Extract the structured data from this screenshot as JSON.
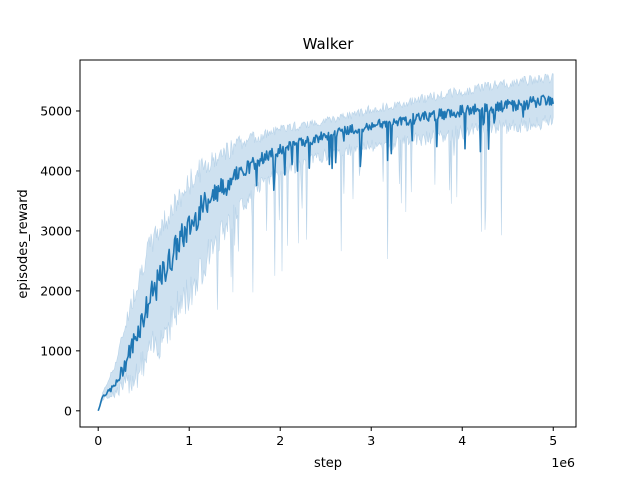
{
  "chart_data": {
    "type": "line",
    "title": "Walker",
    "xlabel": "step",
    "ylabel": "episodes_reward",
    "x_offset_label": "1e6",
    "xlim": [
      -0.2,
      5.25
    ],
    "ylim": [
      -270,
      5850
    ],
    "xticks": [
      0,
      1,
      2,
      3,
      4,
      5
    ],
    "xtick_labels": [
      "0",
      "1",
      "2",
      "3",
      "4",
      "5"
    ],
    "yticks": [
      0,
      1000,
      2000,
      3000,
      4000,
      5000
    ],
    "ytick_labels": [
      "0",
      "1000",
      "2000",
      "3000",
      "4000",
      "5000"
    ],
    "grid": false,
    "colors": {
      "line": "#1f77b4",
      "band": "#a6c8e3",
      "spine": "#000000"
    },
    "series": [
      {
        "x": [
          0,
          0.05,
          0.1,
          0.2,
          0.3,
          0.4,
          0.5,
          0.6,
          0.7,
          0.8,
          0.9,
          1.0,
          1.1,
          1.2,
          1.3,
          1.4,
          1.5,
          1.6,
          1.7,
          1.8,
          1.9,
          2.0,
          2.2,
          2.4,
          2.6,
          2.8,
          3.0,
          3.2,
          3.4,
          3.6,
          3.8,
          4.0,
          4.2,
          4.4,
          4.6,
          4.8,
          5.0
        ],
        "mean": [
          0,
          250,
          300,
          450,
          800,
          1200,
          1600,
          1950,
          2250,
          2550,
          2850,
          3050,
          3300,
          3500,
          3650,
          3750,
          3900,
          4000,
          4100,
          4200,
          4280,
          4350,
          4450,
          4550,
          4620,
          4700,
          4750,
          4800,
          4850,
          4900,
          4950,
          5000,
          5030,
          5070,
          5100,
          5150,
          5200
        ],
        "upper": [
          0,
          300,
          450,
          800,
          1400,
          1900,
          2400,
          2750,
          3000,
          3250,
          3450,
          3700,
          3900,
          4050,
          4150,
          4250,
          4350,
          4450,
          4500,
          4550,
          4600,
          4650,
          4720,
          4780,
          4850,
          4900,
          5000,
          5050,
          5120,
          5180,
          5250,
          5300,
          5350,
          5400,
          5450,
          5480,
          5520
        ],
        "lower": [
          0,
          200,
          250,
          350,
          500,
          700,
          900,
          1150,
          1400,
          1650,
          1900,
          2100,
          2400,
          2700,
          2950,
          3150,
          3350,
          3550,
          3700,
          3850,
          3950,
          4050,
          4150,
          4250,
          4350,
          4400,
          4450,
          4500,
          4550,
          4600,
          4650,
          4700,
          4750,
          4780,
          4800,
          4850,
          4900
        ]
      }
    ]
  }
}
